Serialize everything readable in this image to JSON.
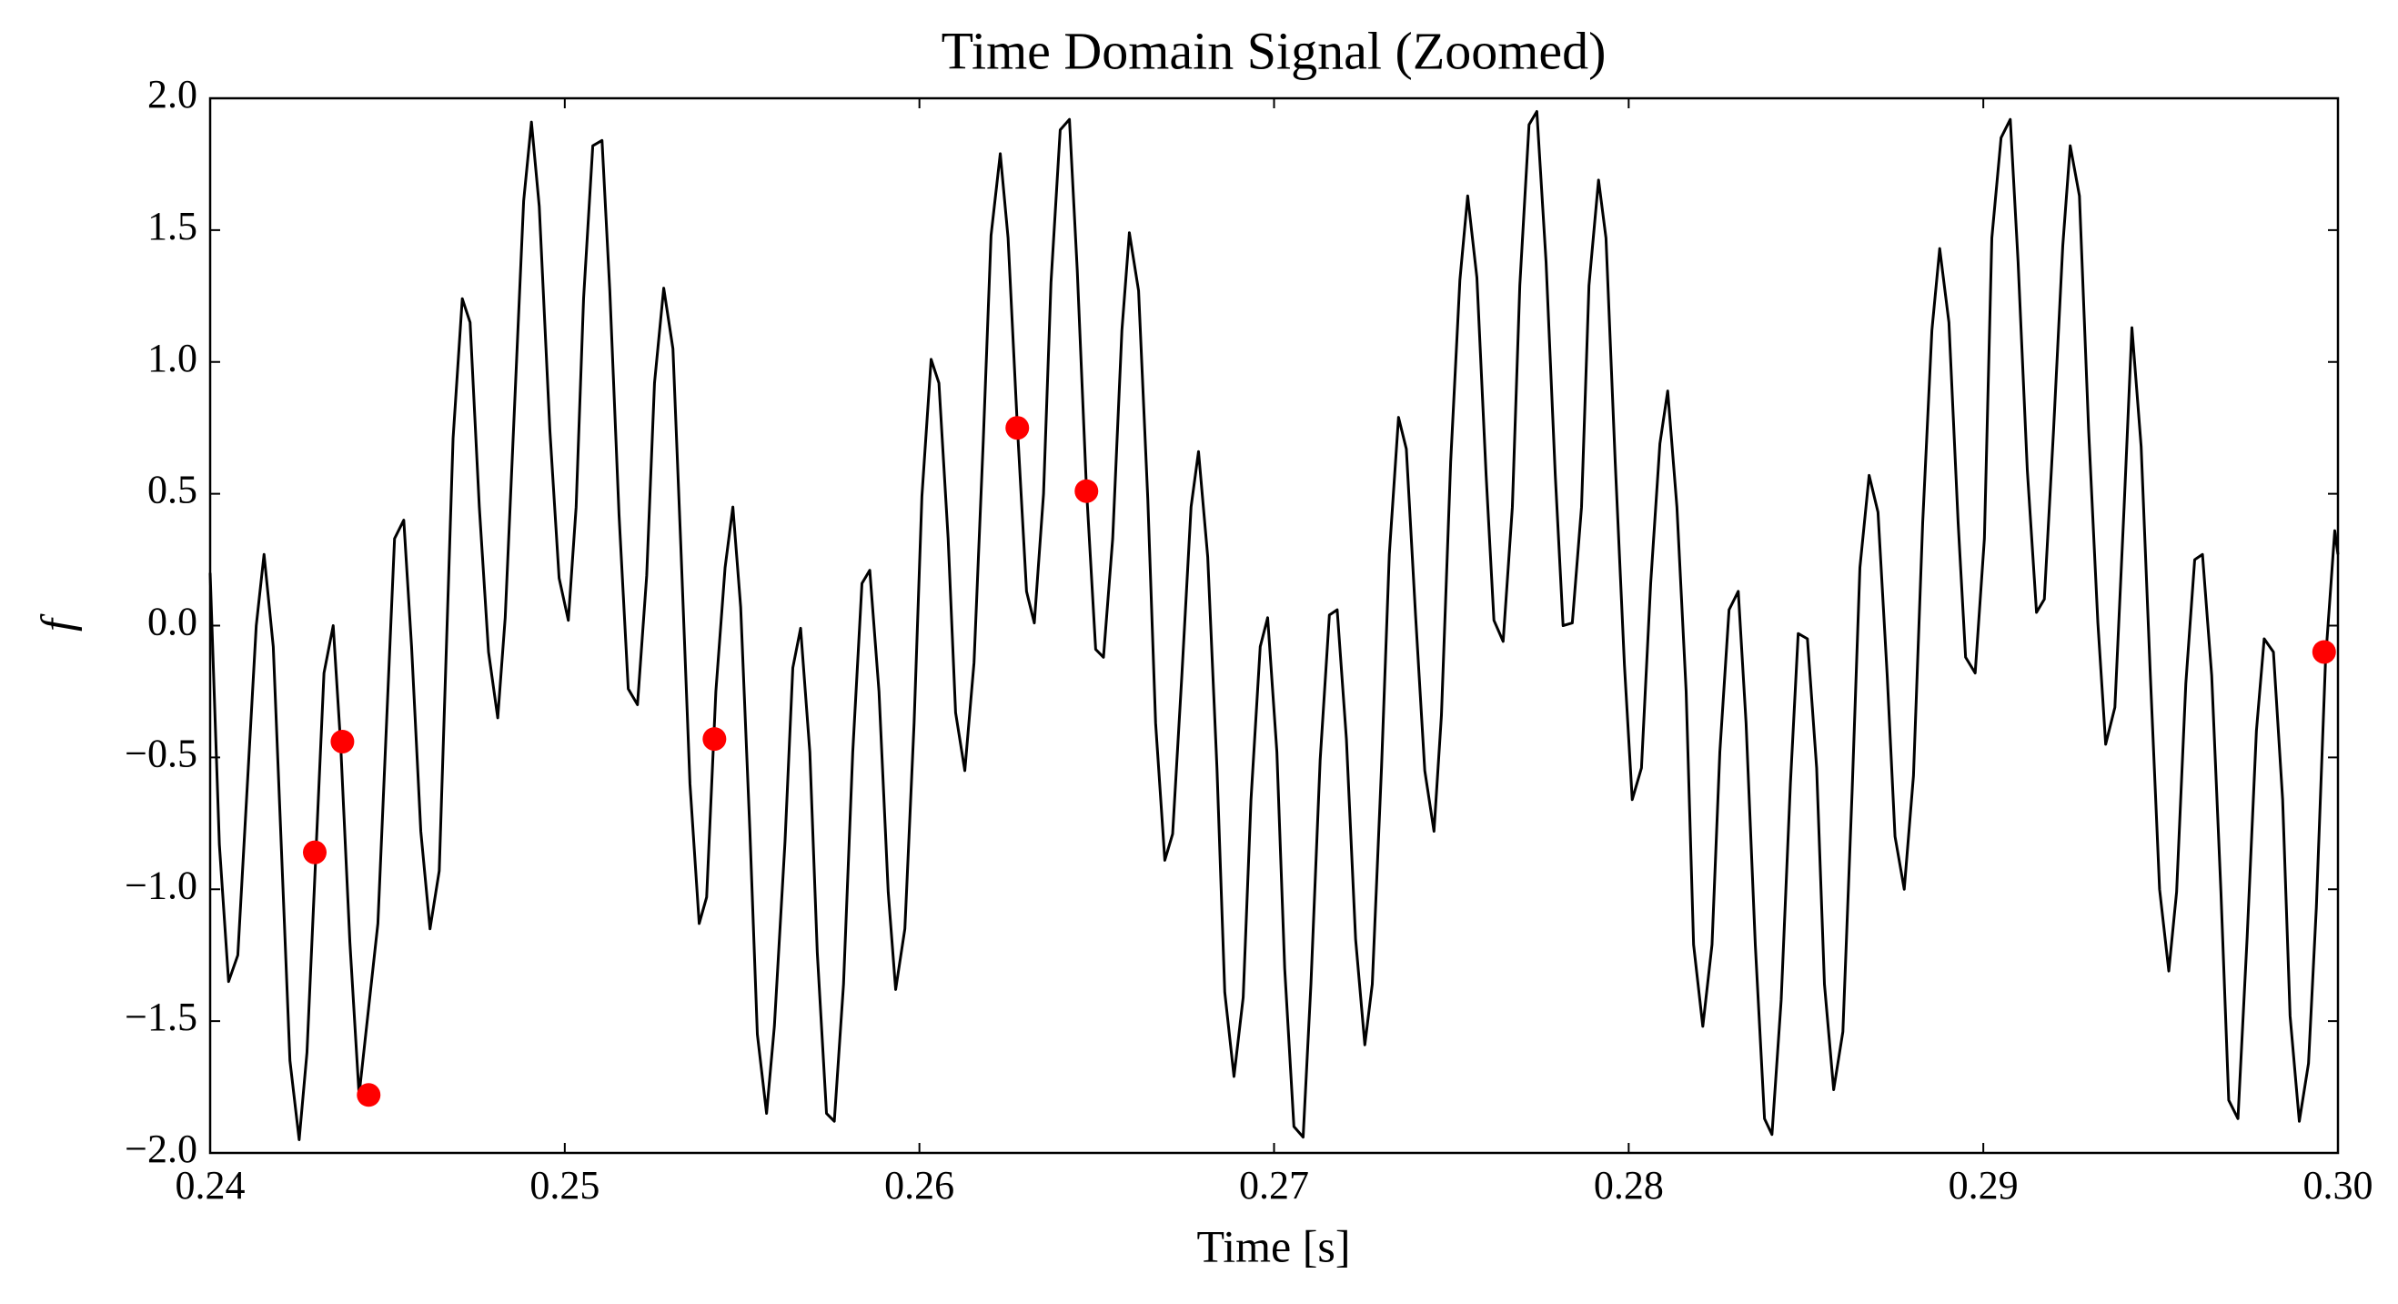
{
  "chart_data": {
    "type": "line",
    "title": "Time Domain Signal (Zoomed)",
    "xlabel": "Time [s]",
    "ylabel": "f",
    "xlim": [
      0.24,
      0.3
    ],
    "ylim": [
      -2,
      2
    ],
    "xticks": [
      0.24,
      0.25,
      0.26,
      0.27,
      0.28,
      0.29,
      {
        "value": 0.3,
        "label": "0.30"
      }
    ],
    "yticks": [
      {
        "value": -2,
        "label": "−2.0"
      },
      {
        "value": -1.5,
        "label": "−1.5"
      },
      {
        "value": -1,
        "label": "−1.0"
      },
      {
        "value": -0.5,
        "label": "−0.5"
      },
      {
        "value": 0,
        "label": "0.0"
      },
      {
        "value": 0.5,
        "label": "0.5"
      },
      {
        "value": 1,
        "label": "1.0"
      },
      {
        "value": 1.5,
        "label": "1.5"
      },
      {
        "value": 2,
        "label": "2.0"
      }
    ],
    "grid": false,
    "series": [
      {
        "type": "line",
        "color": "#000000",
        "x": [
          0.24,
          0.24026,
          0.24052,
          0.24078,
          0.2413,
          0.24152,
          0.24178,
          0.24225,
          0.24251,
          0.24273,
          0.24321,
          0.24347,
          0.24368,
          0.24394,
          0.2442,
          0.24473,
          0.24499,
          0.2452,
          0.24546,
          0.24568,
          0.24594,
          0.2462,
          0.24646,
          0.24685,
          0.24711,
          0.24733,
          0.24759,
          0.24785,
          0.24811,
          0.24832,
          0.24884,
          0.24906,
          0.24928,
          0.24958,
          0.24984,
          0.2501,
          0.25032,
          0.25053,
          0.25079,
          0.25105,
          0.25127,
          0.25153,
          0.25179,
          0.25205,
          0.25231,
          0.25253,
          0.25279,
          0.25305,
          0.25327,
          0.25353,
          0.25379,
          0.254,
          0.25426,
          0.25452,
          0.25474,
          0.25496,
          0.25522,
          0.25543,
          0.25569,
          0.25591,
          0.25621,
          0.25643,
          0.25665,
          0.25691,
          0.25712,
          0.25738,
          0.2576,
          0.25786,
          0.25812,
          0.25838,
          0.2586,
          0.25886,
          0.25912,
          0.25933,
          0.25959,
          0.25985,
          0.26007,
          0.26033,
          0.26055,
          0.26081,
          0.26102,
          0.26128,
          0.26154,
          0.2618,
          0.26202,
          0.26228,
          0.2625,
          0.26276,
          0.26302,
          0.26324,
          0.2635,
          0.26371,
          0.26397,
          0.26423,
          0.26445,
          0.26471,
          0.26497,
          0.26519,
          0.26545,
          0.26571,
          0.26592,
          0.26618,
          0.26644,
          0.26666,
          0.26692,
          0.26714,
          0.2674,
          0.26766,
          0.26787,
          0.26813,
          0.26839,
          0.26861,
          0.26887,
          0.26913,
          0.26935,
          0.26961,
          0.26982,
          0.27008,
          0.2703,
          0.27056,
          0.27082,
          0.27104,
          0.2713,
          0.27156,
          0.27178,
          0.27204,
          0.2723,
          0.27256,
          0.27277,
          0.27303,
          0.27325,
          0.27351,
          0.27373,
          0.27399,
          0.27425,
          0.27451,
          0.27472,
          0.27498,
          0.27524,
          0.27546,
          0.27572,
          0.27598,
          0.2762,
          0.27646,
          0.27672,
          0.27693,
          0.27719,
          0.27741,
          0.27767,
          0.27793,
          0.27815,
          0.27841,
          0.27867,
          0.27888,
          0.27915,
          0.27936,
          0.27962,
          0.27988,
          0.2801,
          0.28036,
          0.28062,
          0.28088,
          0.2811,
          0.28136,
          0.28162,
          0.28183,
          0.28209,
          0.28235,
          0.28257,
          0.28283,
          0.28309,
          0.28331,
          0.28357,
          0.28383,
          0.28404,
          0.2843,
          0.28456,
          0.28478,
          0.28504,
          0.2853,
          0.28552,
          0.28578,
          0.28604,
          0.2863,
          0.28652,
          0.28678,
          0.28703,
          0.28729,
          0.28751,
          0.28777,
          0.28803,
          0.28829,
          0.28855,
          0.28877,
          0.28903,
          0.28929,
          0.2895,
          0.28977,
          0.29003,
          0.29024,
          0.2905,
          0.29076,
          0.29098,
          0.29124,
          0.2915,
          0.29172,
          0.29198,
          0.29224,
          0.29245,
          0.29271,
          0.29297,
          0.29323,
          0.29345,
          0.29371,
          0.29397,
          0.29419,
          0.29445,
          0.29471,
          0.29497,
          0.29523,
          0.29545,
          0.29571,
          0.29596,
          0.29618,
          0.29644,
          0.2967,
          0.29692,
          0.29718,
          0.29744,
          0.2977,
          0.29792,
          0.29818,
          0.29844,
          0.29865,
          0.29891,
          0.29917,
          0.29939,
          0.29965,
          0.29991,
          0.3
        ],
        "values": [
          0.2,
          -0.83,
          -1.35,
          -1.25,
          0.0,
          0.27,
          -0.08,
          -1.65,
          -1.95,
          -1.62,
          -0.18,
          0.0,
          -0.45,
          -1.2,
          -1.78,
          -1.13,
          -0.32,
          0.33,
          0.4,
          -0.08,
          -0.78,
          -1.15,
          -0.93,
          0.71,
          1.24,
          1.15,
          0.45,
          -0.1,
          -0.35,
          0.03,
          1.61,
          1.91,
          1.59,
          0.74,
          0.18,
          0.02,
          0.45,
          1.24,
          1.82,
          1.84,
          1.27,
          0.42,
          -0.24,
          -0.3,
          0.19,
          0.92,
          1.28,
          1.05,
          0.31,
          -0.6,
          -1.13,
          -1.03,
          -0.25,
          0.22,
          0.45,
          0.07,
          -0.78,
          -1.55,
          -1.85,
          -1.52,
          -0.82,
          -0.16,
          -0.01,
          -0.48,
          -1.24,
          -1.85,
          -1.88,
          -1.36,
          -0.48,
          0.16,
          0.21,
          -0.25,
          -1.01,
          -1.38,
          -1.15,
          -0.37,
          0.49,
          1.01,
          0.92,
          0.33,
          -0.33,
          -0.55,
          -0.14,
          0.7,
          1.48,
          1.79,
          1.47,
          0.76,
          0.13,
          0.01,
          0.5,
          1.3,
          1.88,
          1.92,
          1.35,
          0.52,
          -0.09,
          -0.12,
          0.33,
          1.12,
          1.49,
          1.27,
          0.48,
          -0.37,
          -0.89,
          -0.79,
          -0.19,
          0.45,
          0.66,
          0.26,
          -0.54,
          -1.39,
          -1.71,
          -1.41,
          -0.66,
          -0.08,
          0.03,
          -0.48,
          -1.3,
          -1.9,
          -1.94,
          -1.36,
          -0.51,
          0.04,
          0.06,
          -0.43,
          -1.19,
          -1.59,
          -1.36,
          -0.54,
          0.27,
          0.79,
          0.67,
          0.04,
          -0.55,
          -0.78,
          -0.34,
          0.62,
          1.31,
          1.63,
          1.32,
          0.57,
          0.02,
          -0.06,
          0.45,
          1.29,
          1.9,
          1.95,
          1.38,
          0.57,
          0.0,
          0.01,
          0.45,
          1.29,
          1.69,
          1.47,
          0.62,
          -0.15,
          -0.66,
          -0.54,
          0.16,
          0.69,
          0.89,
          0.45,
          -0.25,
          -1.21,
          -1.52,
          -1.21,
          -0.48,
          0.06,
          0.13,
          -0.37,
          -1.21,
          -1.87,
          -1.93,
          -1.42,
          -0.6,
          -0.03,
          -0.05,
          -0.54,
          -1.36,
          -1.76,
          -1.54,
          -0.63,
          0.22,
          0.57,
          0.43,
          -0.19,
          -0.8,
          -1.0,
          -0.57,
          0.39,
          1.12,
          1.43,
          1.15,
          0.39,
          -0.12,
          -0.18,
          0.33,
          1.47,
          1.85,
          1.92,
          1.38,
          0.59,
          0.05,
          0.1,
          0.74,
          1.44,
          1.82,
          1.63,
          0.74,
          0.01,
          -0.45,
          -0.31,
          0.45,
          1.13,
          0.68,
          -0.19,
          -1.0,
          -1.31,
          -1.01,
          -0.22,
          0.25,
          0.27,
          -0.19,
          -1.01,
          -1.8,
          -1.87,
          -1.18,
          -0.4,
          -0.05,
          -0.1,
          -0.66,
          -1.48,
          -1.88,
          -1.66,
          -1.07,
          -0.13,
          0.36,
          0.27
        ]
      },
      {
        "type": "scatter",
        "color": "#ff0000",
        "x": [
          0.24295,
          0.24373,
          0.24447,
          0.25422,
          0.26276,
          0.26471,
          0.29961
        ],
        "values": [
          -0.86,
          -0.44,
          -1.78,
          -0.43,
          0.75,
          0.51,
          -0.1
        ]
      }
    ]
  }
}
